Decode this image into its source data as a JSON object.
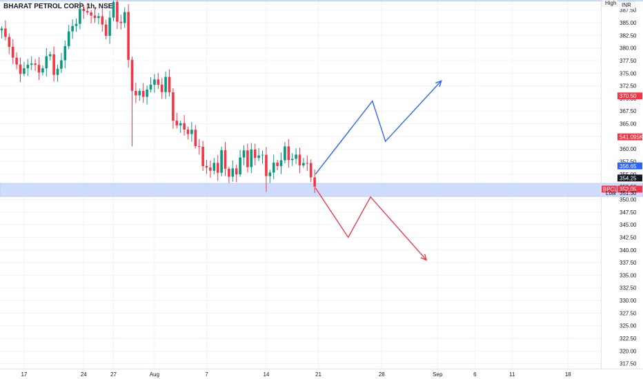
{
  "header": {
    "title": "BHARAT PETROL CORP, 1h, NSE"
  },
  "corner_labels": {
    "high": "High",
    "currency": "INR",
    "low": "Low"
  },
  "colors": {
    "up": "#089981",
    "down": "#f23645",
    "zone": "#c7d6fb",
    "arrow_up": "#2962ff",
    "arrow_down": "#f23645",
    "grid": "#f0f3fa"
  },
  "chart_data": {
    "type": "candlestick",
    "title": "BHARAT PETROL CORP, 1h, NSE",
    "y_axis": {
      "min": 316.5,
      "max": 389.5,
      "position": "right",
      "ticks": [
        387.5,
        385.0,
        382.5,
        380.0,
        377.5,
        375.0,
        372.5,
        370.0,
        367.5,
        365.0,
        362.5,
        360.0,
        357.5,
        355.0,
        352.5,
        350.0,
        347.5,
        345.0,
        342.5,
        340.0,
        337.5,
        335.0,
        332.5,
        330.0,
        327.5,
        325.0,
        322.5,
        320.0,
        317.5
      ],
      "tick_labels": [
        "387.50",
        "385.00",
        "382.50",
        "380.00",
        "377.50",
        "375.00",
        "372.50",
        "370.00",
        "367.50",
        "365.00",
        "362.50",
        "360.00",
        "357.50",
        "355.00",
        "352.50",
        "350.00",
        "347.50",
        "345.00",
        "342.50",
        "340.00",
        "337.50",
        "335.00",
        "332.50",
        "330.00",
        "327.50",
        "325.00",
        "322.50",
        "320.00",
        "317.50"
      ]
    },
    "x_axis": {
      "labels": [
        "17",
        "24",
        "27",
        "Aug",
        "7",
        "14",
        "21",
        "28",
        "Sep",
        "6",
        "11",
        "18"
      ],
      "label_index": [
        6,
        22,
        30,
        41,
        55,
        71,
        85,
        102,
        117,
        127,
        137,
        152
      ]
    },
    "price_labels": [
      {
        "label": "",
        "value": "370.50",
        "price": 370.5,
        "color": "#f23645"
      },
      {
        "label": "",
        "value": "541.095K",
        "price": 362.4,
        "color": "#f23645"
      },
      {
        "label": "",
        "value": "356.65",
        "price": 356.65,
        "color": "#2962ff"
      },
      {
        "label": "",
        "value": "354.25",
        "price": 354.25,
        "color": "#131722"
      },
      {
        "label": "BPCL",
        "value": "352.05",
        "price": 352.05,
        "color": "#f23645"
      },
      {
        "label": "Low",
        "value": "351.30",
        "price": 351.3,
        "color": "none"
      }
    ],
    "zones": [
      {
        "from": 389.3,
        "to": 389.7
      },
      {
        "from": 350.6,
        "to": 353.2
      }
    ],
    "waypoints": [
      [
        0,
        383.5
      ],
      [
        2,
        380.5
      ],
      [
        4,
        376.0
      ],
      [
        6,
        375.5
      ],
      [
        8,
        377.5
      ],
      [
        10,
        375.0
      ],
      [
        12,
        378.0
      ],
      [
        13,
        378.5
      ],
      [
        14,
        375.5
      ],
      [
        15,
        375.0
      ],
      [
        16,
        378.0
      ],
      [
        18,
        383.0
      ],
      [
        20,
        385.5
      ],
      [
        22,
        388.0
      ],
      [
        24,
        386.0
      ],
      [
        26,
        386.5
      ],
      [
        27,
        384.0
      ],
      [
        28,
        383.0
      ],
      [
        29,
        386.0
      ],
      [
        30,
        388.5
      ],
      [
        31,
        386.0
      ],
      [
        32,
        384.5
      ],
      [
        33,
        387.0
      ],
      [
        34,
        378.0
      ],
      [
        35,
        371.5
      ],
      [
        36,
        370.0
      ],
      [
        37,
        372.5
      ],
      [
        38,
        369.5
      ],
      [
        39,
        372.0
      ],
      [
        40,
        373.0
      ],
      [
        41,
        373.5
      ],
      [
        42,
        372.5
      ],
      [
        43,
        372.0
      ],
      [
        44,
        373.5
      ],
      [
        45,
        371.5
      ],
      [
        46,
        366.0
      ],
      [
        47,
        364.0
      ],
      [
        48,
        365.5
      ],
      [
        49,
        364.0
      ],
      [
        50,
        362.5
      ],
      [
        51,
        364.0
      ],
      [
        52,
        361.0
      ],
      [
        53,
        359.5
      ],
      [
        54,
        357.5
      ],
      [
        55,
        356.0
      ],
      [
        56,
        355.5
      ],
      [
        57,
        357.5
      ],
      [
        58,
        355.5
      ],
      [
        59,
        359.0
      ],
      [
        60,
        357.0
      ],
      [
        61,
        354.0
      ],
      [
        62,
        356.0
      ],
      [
        63,
        355.5
      ],
      [
        64,
        358.0
      ],
      [
        65,
        359.5
      ],
      [
        66,
        357.0
      ],
      [
        67,
        359.5
      ],
      [
        68,
        358.0
      ],
      [
        69,
        359.5
      ],
      [
        70,
        358.0
      ],
      [
        71,
        355.0
      ],
      [
        72,
        355.5
      ],
      [
        73,
        357.0
      ],
      [
        74,
        356.5
      ],
      [
        75,
        358.5
      ],
      [
        76,
        359.5
      ],
      [
        77,
        358.5
      ],
      [
        78,
        358.0
      ],
      [
        79,
        358.5
      ],
      [
        80,
        357.0
      ],
      [
        81,
        357.5
      ],
      [
        82,
        356.5
      ],
      [
        83,
        355.0
      ],
      [
        84,
        352.5
      ]
    ],
    "projections": [
      {
        "name": "",
        "color": "#2962ff",
        "points": [
          [
            84.2,
            355.0
          ],
          [
            99.5,
            369.5
          ],
          [
            103,
            361.5
          ],
          [
            118,
            373.5
          ]
        ]
      },
      {
        "name": "",
        "color": "#f23645",
        "points": [
          [
            84.2,
            352.3
          ],
          [
            93,
            342.5
          ],
          [
            99,
            350.5
          ],
          [
            114,
            338.0
          ]
        ]
      }
    ]
  }
}
